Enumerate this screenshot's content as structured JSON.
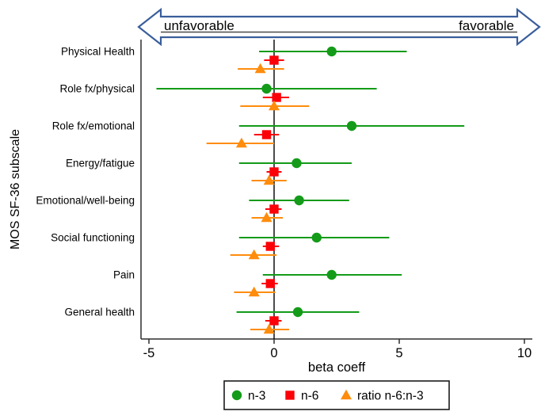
{
  "figure": {
    "annotation_arrow": {
      "left_label": "unfavorable",
      "right_label": "favorable",
      "outline_color": "#3a5e9b",
      "fill_color": "#ffffff",
      "underline_color": "#4a4a4a"
    },
    "axis_color": "#2e2e2e",
    "zero_line_color": "#000000",
    "legend_border_color": "#1a1a1a"
  },
  "chart_data": {
    "type": "scatter",
    "subtype": "forest-plot-horizontal-95ci",
    "title": "",
    "xlabel": "beta coeff",
    "ylabel": "MOS SF-36 subscale",
    "xlim": [
      -5.3,
      10.3
    ],
    "x_ticks": [
      -5,
      0,
      5,
      10
    ],
    "grid": false,
    "zero_reference_line": 0,
    "legend_position": "bottom",
    "categories": [
      "Physical Health",
      "Role fx/physical",
      "Role fx/emotional",
      "Energy/fatigue",
      "Emotional/well-being",
      "Social functioning",
      "Pain",
      "General health"
    ],
    "series": [
      {
        "name": "n-3",
        "marker": "circle",
        "color": "#149b19",
        "points": [
          {
            "beta": 2.3,
            "ci_low": -0.6,
            "ci_high": 5.3
          },
          {
            "beta": -0.3,
            "ci_low": -4.7,
            "ci_high": 4.1
          },
          {
            "beta": 3.1,
            "ci_low": -1.4,
            "ci_high": 7.6
          },
          {
            "beta": 0.9,
            "ci_low": -1.4,
            "ci_high": 3.1
          },
          {
            "beta": 1.0,
            "ci_low": -1.0,
            "ci_high": 3.0
          },
          {
            "beta": 1.7,
            "ci_low": -1.4,
            "ci_high": 4.6
          },
          {
            "beta": 2.3,
            "ci_low": -0.45,
            "ci_high": 5.1
          },
          {
            "beta": 0.95,
            "ci_low": -1.5,
            "ci_high": 3.4
          }
        ]
      },
      {
        "name": "n-6",
        "marker": "square",
        "color": "#fb0209",
        "points": [
          {
            "beta": 0.0,
            "ci_low": -0.4,
            "ci_high": 0.4
          },
          {
            "beta": 0.1,
            "ci_low": -0.45,
            "ci_high": 0.6
          },
          {
            "beta": -0.3,
            "ci_low": -0.8,
            "ci_high": 0.2
          },
          {
            "beta": 0.0,
            "ci_low": -0.3,
            "ci_high": 0.3
          },
          {
            "beta": 0.0,
            "ci_low": -0.35,
            "ci_high": 0.3
          },
          {
            "beta": -0.15,
            "ci_low": -0.45,
            "ci_high": 0.2
          },
          {
            "beta": -0.15,
            "ci_low": -0.5,
            "ci_high": 0.15
          },
          {
            "beta": 0.0,
            "ci_low": -0.35,
            "ci_high": 0.3
          }
        ]
      },
      {
        "name": "ratio n-6:n-3",
        "marker": "triangle",
        "color": "#ff8c0c",
        "points": [
          {
            "beta": -0.55,
            "ci_low": -1.45,
            "ci_high": 0.4
          },
          {
            "beta": 0.0,
            "ci_low": -1.35,
            "ci_high": 1.4
          },
          {
            "beta": -1.3,
            "ci_low": -2.7,
            "ci_high": 0.0
          },
          {
            "beta": -0.2,
            "ci_low": -0.9,
            "ci_high": 0.5
          },
          {
            "beta": -0.3,
            "ci_low": -0.9,
            "ci_high": 0.35
          },
          {
            "beta": -0.8,
            "ci_low": -1.75,
            "ci_high": 0.1
          },
          {
            "beta": -0.8,
            "ci_low": -1.6,
            "ci_high": 0.05
          },
          {
            "beta": -0.2,
            "ci_low": -0.95,
            "ci_high": 0.6
          }
        ]
      }
    ]
  }
}
